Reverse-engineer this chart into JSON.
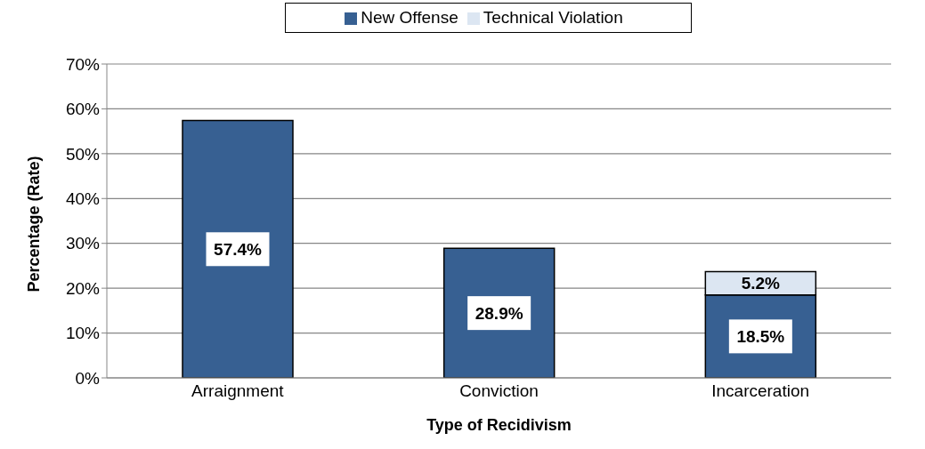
{
  "chart_data": {
    "type": "bar",
    "stacked": true,
    "xlabel": "Type of Recidivism",
    "ylabel": "Percentage (Rate)",
    "categories": [
      "Arraignment",
      "Conviction",
      "Incarceration"
    ],
    "series": [
      {
        "name": "New Offense",
        "color": "#376092",
        "values": [
          57.4,
          28.9,
          18.5
        ],
        "value_labels": [
          "57.4%",
          "28.9%",
          "18.5%"
        ]
      },
      {
        "name": "Technical Violation",
        "color": "#dce6f2",
        "values": [
          null,
          null,
          5.2
        ],
        "value_labels": [
          null,
          null,
          "5.2%"
        ]
      }
    ],
    "ylim": [
      0,
      70
    ],
    "yticks": [
      {
        "value": 0,
        "label": "0%"
      },
      {
        "value": 10,
        "label": "10%"
      },
      {
        "value": 20,
        "label": "20%"
      },
      {
        "value": 30,
        "label": "30%"
      },
      {
        "value": 40,
        "label": "40%"
      },
      {
        "value": 50,
        "label": "50%"
      },
      {
        "value": 60,
        "label": "60%"
      },
      {
        "value": 70,
        "label": "70%"
      }
    ],
    "grid": "y",
    "legend": "top"
  }
}
